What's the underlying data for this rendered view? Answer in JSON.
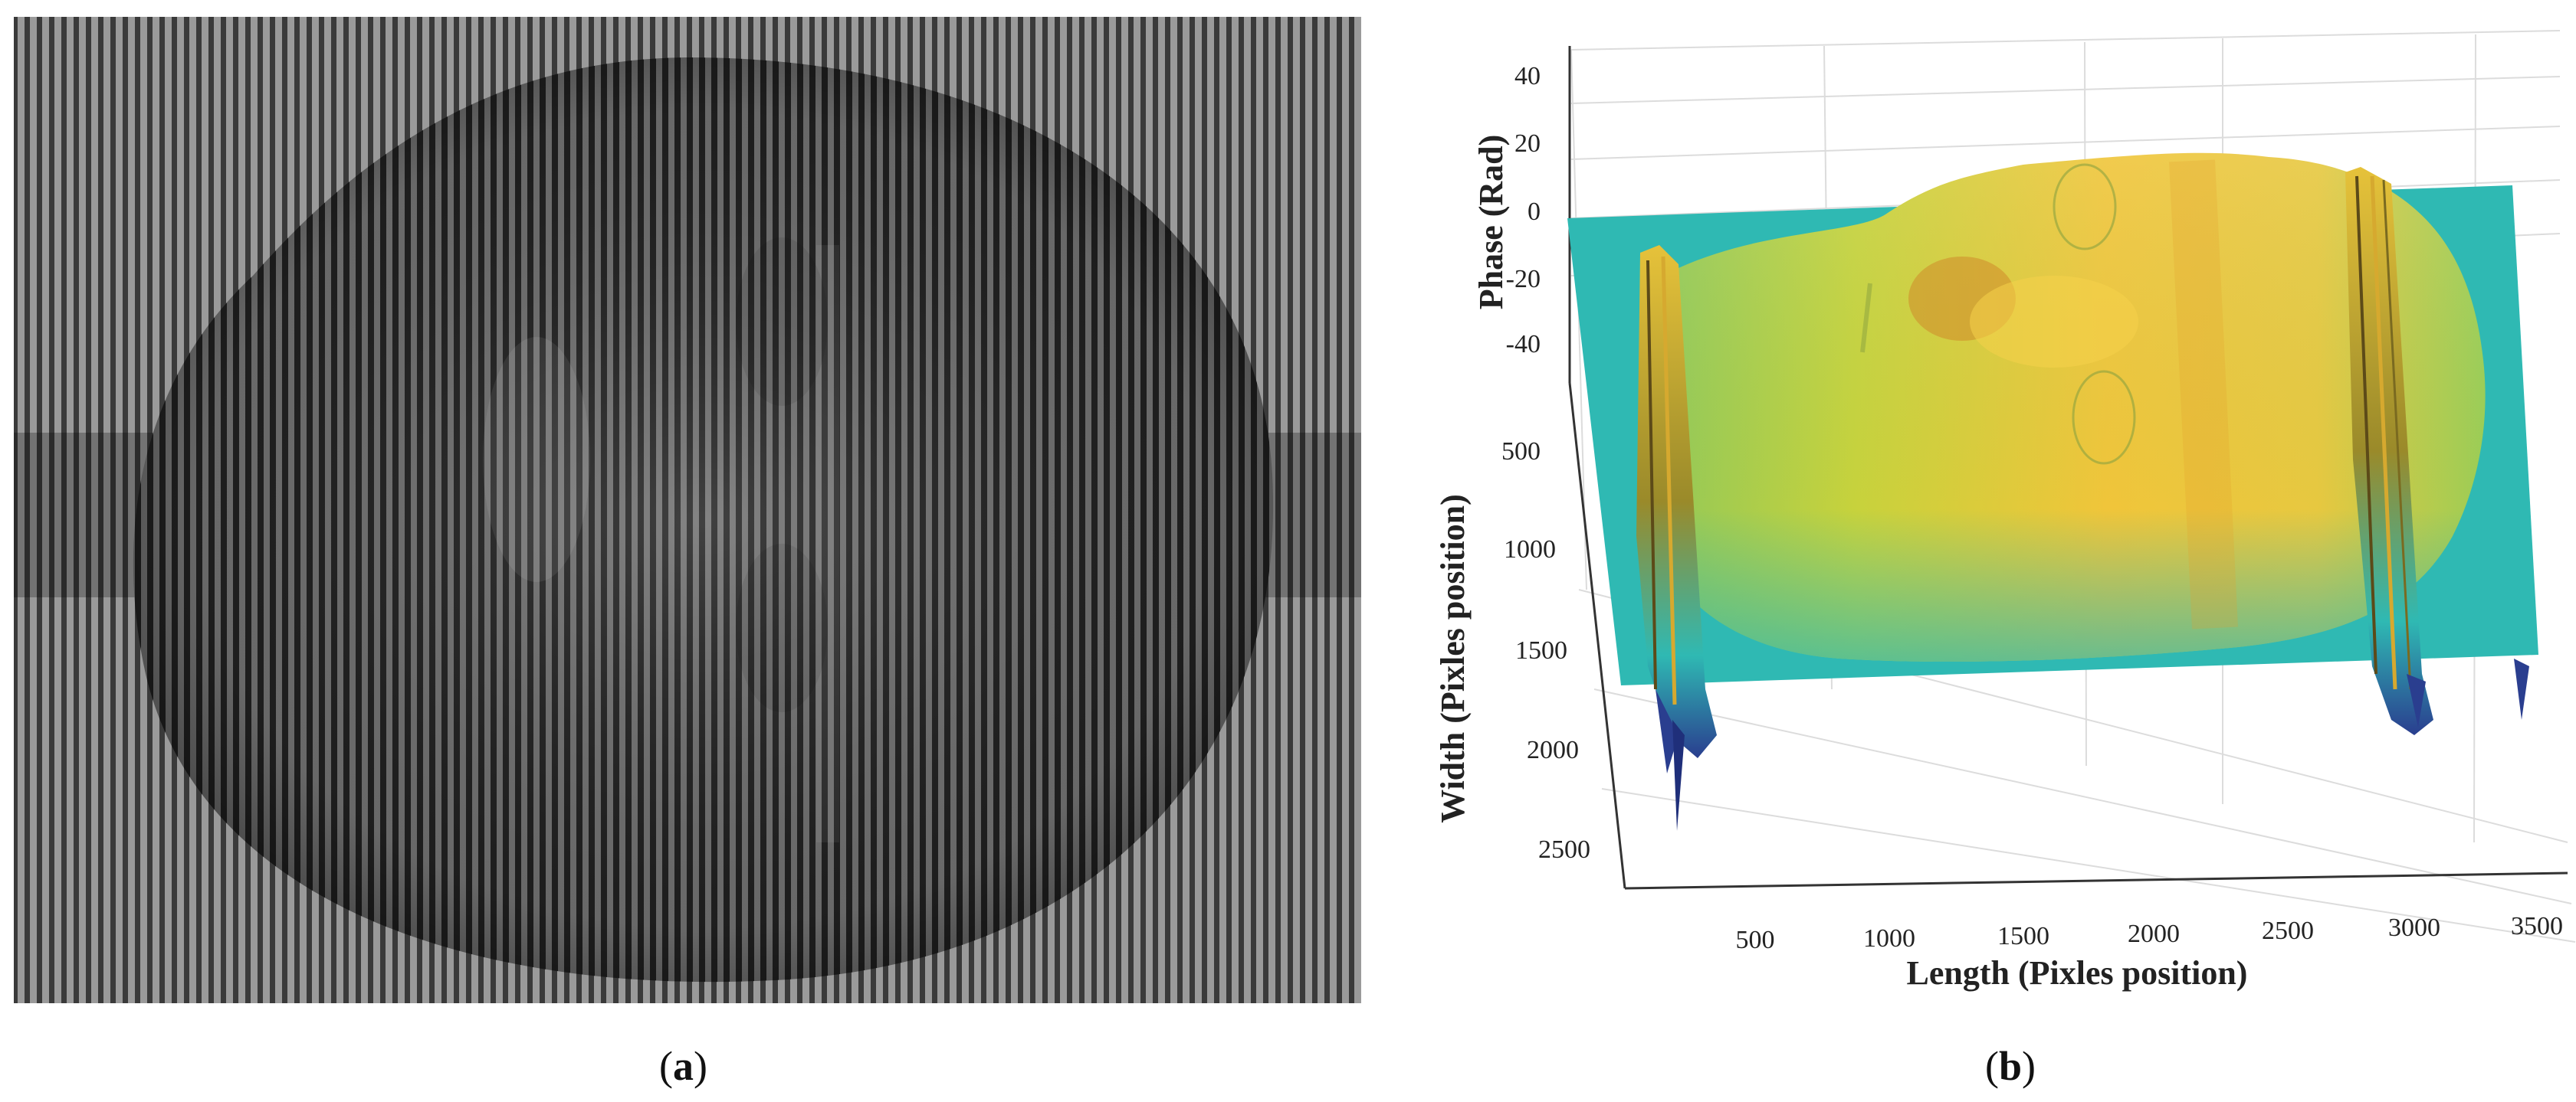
{
  "panel_a": {
    "caption_label": "a"
  },
  "panel_b": {
    "caption_label": "b",
    "z_axis": {
      "label": "Phase (Rad)",
      "ticks": [
        "40",
        "20",
        "0",
        "-20",
        "-40"
      ]
    },
    "y_axis": {
      "label": "Width (Pixles position)",
      "ticks": [
        "500",
        "1000",
        "1500",
        "2000",
        "2500"
      ]
    },
    "x_axis": {
      "label": "Length (Pixles position)",
      "ticks": [
        "500",
        "1000",
        "1500",
        "2000",
        "2500",
        "3000",
        "3500"
      ]
    },
    "colors": {
      "plane": "#2fb9b3",
      "face_high": "#f2c33a",
      "face_mid": "#b9cf3e",
      "ridge_dark": "#2a3e8f"
    }
  }
}
